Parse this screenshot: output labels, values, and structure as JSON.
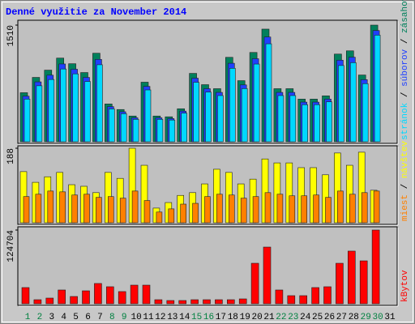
{
  "chart_data": [
    {
      "type": "bar",
      "title": "Denné využitie za November 2014",
      "legend_separator": " / ",
      "series": [
        {
          "name": "zásahov",
          "color": "#00805c",
          "values": [
            635,
            833,
            927,
            1083,
            1010,
            896,
            1146,
            489,
            417,
            333,
            771,
            333,
            323,
            427,
            885,
            739,
            687,
            1093,
            791,
            1156,
            1458,
            687,
            687,
            552,
            552,
            594,
            1135,
            1177,
            864,
            1510,
            0
          ]
        },
        {
          "name": "súborov",
          "color": "#2040ff",
          "values": [
            590,
            775,
            862,
            1007,
            939,
            833,
            1066,
            455,
            388,
            310,
            717,
            310,
            300,
            397,
            823,
            687,
            639,
            1016,
            736,
            1075,
            1356,
            639,
            639,
            513,
            513,
            552,
            1056,
            1095,
            804,
            1440,
            0
          ]
        },
        {
          "name": "stránok",
          "color": "#00d8ff",
          "values": [
            552,
            725,
            806,
            942,
            879,
            780,
            997,
            425,
            363,
            290,
            671,
            290,
            281,
            371,
            770,
            643,
            598,
            951,
            688,
            1006,
            1268,
            598,
            598,
            480,
            480,
            517,
            987,
            1024,
            752,
            1380,
            0
          ]
        }
      ],
      "ylim": [
        0,
        1510
      ],
      "yticks": [
        1510
      ]
    },
    {
      "type": "bar",
      "legend_separator": " / ",
      "series": [
        {
          "name": "návštev",
          "color": "#ffff00",
          "values": [
            129,
            102,
            116,
            127,
            96,
            92,
            76,
            127,
            112,
            188,
            145,
            37,
            51,
            69,
            76,
            98,
            135,
            127,
            98,
            110,
            161,
            151,
            151,
            139,
            139,
            121,
            176,
            145,
            178,
            82,
            0
          ]
        },
        {
          "name": "miest",
          "color": "#ff8000",
          "values": [
            66,
            72,
            80,
            78,
            70,
            72,
            64,
            66,
            62,
            80,
            56,
            27,
            35,
            47,
            49,
            66,
            72,
            70,
            62,
            66,
            76,
            72,
            68,
            68,
            70,
            64,
            80,
            72,
            76,
            80,
            0
          ]
        }
      ],
      "ylim": [
        0,
        188
      ],
      "yticks": [
        188
      ]
    },
    {
      "type": "bar",
      "series": [
        {
          "name": "kBytov",
          "color": "#ff0000",
          "values": [
            27400,
            6850,
            9590,
            23300,
            12300,
            21900,
            34300,
            28800,
            20600,
            31500,
            31500,
            6850,
            5480,
            5480,
            6850,
            6850,
            6850,
            6850,
            8220,
            68500,
            95900,
            23300,
            13700,
            13700,
            27400,
            28800,
            68500,
            89100,
            72600,
            124704,
            0
          ]
        }
      ],
      "ylim": [
        0,
        124704
      ],
      "yticks": [
        124704
      ],
      "categories": [
        "1",
        "2",
        "3",
        "4",
        "5",
        "6",
        "7",
        "8",
        "9",
        "10",
        "11",
        "12",
        "13",
        "14",
        "15",
        "16",
        "17",
        "18",
        "19",
        "20",
        "21",
        "22",
        "23",
        "24",
        "25",
        "26",
        "27",
        "28",
        "29",
        "30",
        "31"
      ],
      "category_colors": [
        "#008040",
        "#008040",
        "#000000",
        "#000000",
        "#000000",
        "#000000",
        "#000000",
        "#008040",
        "#008040",
        "#000000",
        "#000000",
        "#000000",
        "#000000",
        "#000000",
        "#008040",
        "#008040",
        "#000000",
        "#000000",
        "#000000",
        "#000000",
        "#000000",
        "#008040",
        "#008040",
        "#000000",
        "#000000",
        "#000000",
        "#000000",
        "#000000",
        "#008040",
        "#008040",
        "#000000"
      ]
    }
  ]
}
